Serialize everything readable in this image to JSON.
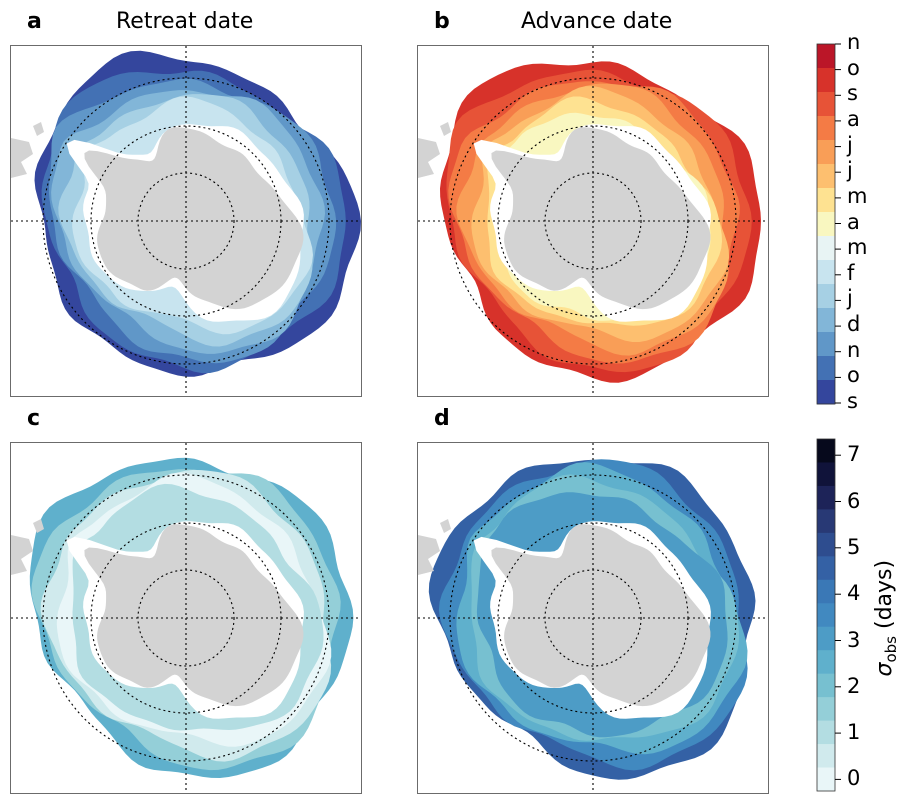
{
  "panels": [
    {
      "letter": "a",
      "title": "Retreat date",
      "kind": "seasonal",
      "palette": "blue"
    },
    {
      "letter": "b",
      "title": "Advance date",
      "kind": "seasonal",
      "palette": "warm"
    },
    {
      "letter": "c",
      "title": "",
      "kind": "uncertainty",
      "intensity": 0.35
    },
    {
      "letter": "d",
      "title": "",
      "kind": "uncertainty",
      "intensity": 0.75
    }
  ],
  "colors": {
    "land": "#d3d3d3",
    "frame": "#6b6b6b",
    "gridline": "#000000"
  },
  "chart_data": [
    {
      "type": "heatmap",
      "title": "Retreat date",
      "colorbar": "date-colorbar"
    },
    {
      "type": "heatmap",
      "title": "Advance date",
      "colorbar": "date-colorbar"
    },
    {
      "type": "heatmap",
      "title": "",
      "colorbar": "sigma-colorbar"
    },
    {
      "type": "heatmap",
      "title": "",
      "colorbar": "sigma-colorbar"
    }
  ],
  "date_colorbar": {
    "labels": [
      "n",
      "o",
      "s",
      "a",
      "j",
      "j",
      "m",
      "a",
      "m",
      "f",
      "j",
      "d",
      "n",
      "o",
      "s"
    ],
    "colors": [
      "#bb1628",
      "#d7322a",
      "#e75337",
      "#f47b45",
      "#f99e57",
      "#fdbf6f",
      "#fee291",
      "#f9f7c0",
      "#e8f4f4",
      "#c8e4ef",
      "#a6d0e4",
      "#82b6d8",
      "#6097c8",
      "#4371b4",
      "#34469d"
    ]
  },
  "sigma_colorbar": {
    "title_main": "σ",
    "title_sub": "obs",
    "title_unit": " (days)",
    "ticks": [
      "7",
      "6",
      "5",
      "4",
      "3",
      "2",
      "1",
      "0"
    ],
    "colors": [
      "#06091c",
      "#10133a",
      "#1d2358",
      "#283975",
      "#2e4d8f",
      "#3461a5",
      "#3a78b6",
      "#4189c0",
      "#4d9cc6",
      "#5fb0cc",
      "#77c0d0",
      "#94cfd8",
      "#b3dde2",
      "#d0eaed",
      "#e9f6f8"
    ]
  }
}
